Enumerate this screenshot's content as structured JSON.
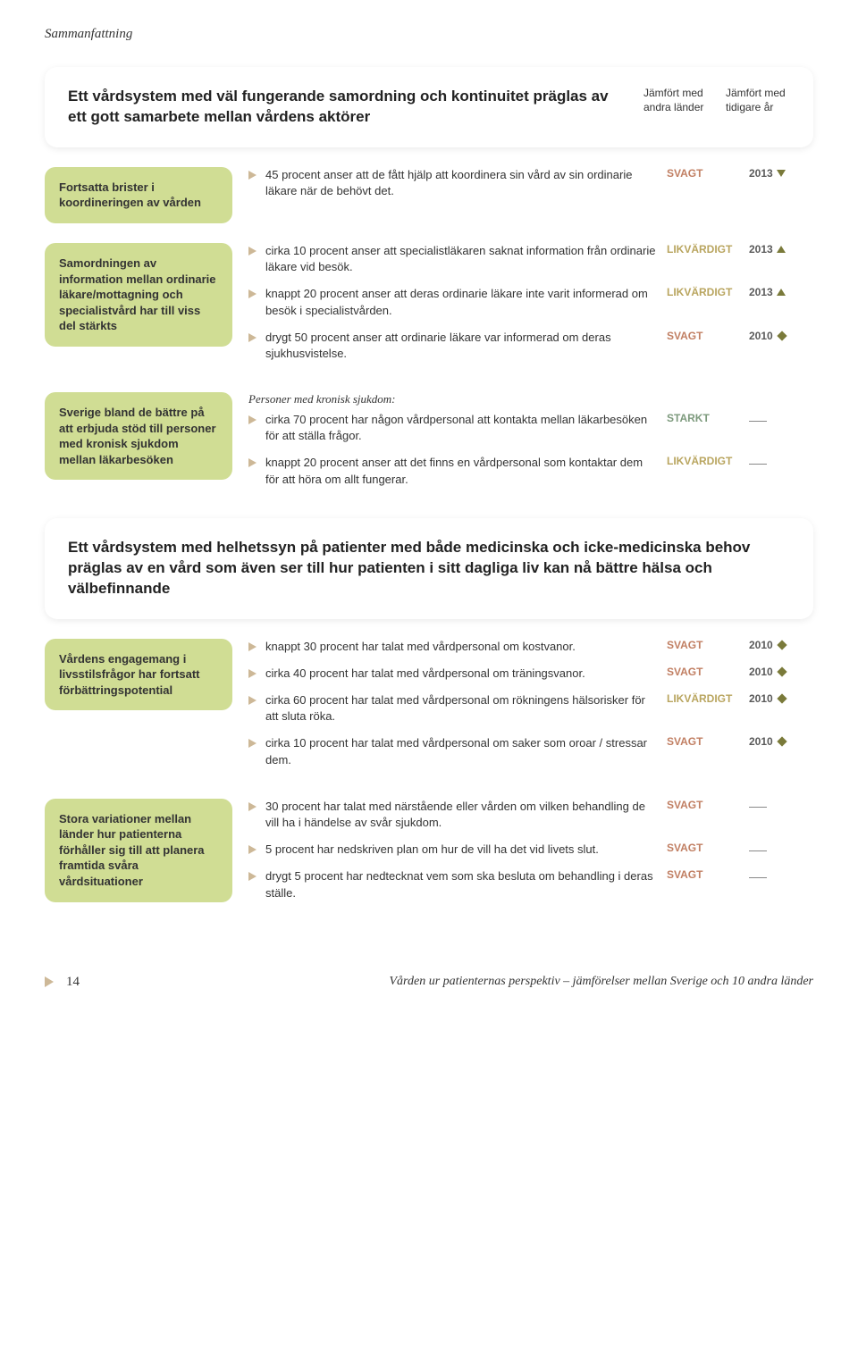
{
  "page_header": "Sammanfattning",
  "colors": {
    "pill_bg": "#d0dd94",
    "triangle": "#cdb897",
    "svagt": "#c17f63",
    "likvardigt": "#b9a55f",
    "starkt": "#7d9a7d",
    "year": "#5a5a5a"
  },
  "compare_heads": {
    "countries": "Jämfört med andra länder",
    "years": "Jämfört med tidigare år"
  },
  "section1": {
    "title": "Ett vårdsystem med väl fungerande samordning och kontinuitet präglas av ett gott samarbete mellan vårdens aktörer"
  },
  "block1": {
    "pill": "Fortsatta brister i koordineringen av vården",
    "findings": [
      {
        "text": "45 procent anser att de fått hjälp att koordinera sin vård av sin ordinarie läkare när de behövt det.",
        "rating": "SVAGT",
        "rating_color": "#c17f63",
        "year": "2013",
        "trend": "down"
      }
    ]
  },
  "block2": {
    "pill": "Samordningen av information mellan ordinarie läkare/mottagning och specialistvård har till viss del stärkts",
    "findings": [
      {
        "text": "cirka 10 procent anser att specialistläkaren saknat information från ordinarie läkare vid besök.",
        "rating": "LIKVÄRDIGT",
        "rating_color": "#b9a55f",
        "year": "2013",
        "trend": "up"
      },
      {
        "text": "knappt 20 procent anser att deras ordinarie läkare inte varit informerad om besök i specialistvården.",
        "rating": "LIKVÄRDIGT",
        "rating_color": "#b9a55f",
        "year": "2013",
        "trend": "up"
      },
      {
        "text": "drygt 50 procent anser att ordinarie läkare var informerad om deras sjukhusvistelse.",
        "rating": "SVAGT",
        "rating_color": "#c17f63",
        "year": "2010",
        "trend": "diamond"
      }
    ]
  },
  "block3": {
    "pill": "Sverige bland de bättre på att erbjuda stöd till personer med kronisk sjukdom mellan läkarbesöken",
    "subtitle": "Personer med kronisk sjukdom:",
    "findings": [
      {
        "text": "cirka 70 procent har någon vårdpersonal att kontakta mellan läkarbesöken för att ställa frågor.",
        "rating": "STARKT",
        "rating_color": "#7d9a7d",
        "year": "",
        "trend": "dash"
      },
      {
        "text": "knappt 20 procent anser att det finns en vårdpersonal som kontaktar dem för att höra om allt fungerar.",
        "rating": "LIKVÄRDIGT",
        "rating_color": "#b9a55f",
        "year": "",
        "trend": "dash"
      }
    ]
  },
  "section2": {
    "title": "Ett vårdsystem med helhetssyn på patienter med både medicinska och icke-medicinska behov präglas av en vård som även ser till hur patienten i sitt dagliga liv kan nå bättre hälsa och välbefinnande"
  },
  "block4": {
    "pill": "Vårdens engagemang i livsstilsfrågor har fortsatt förbättringspotential",
    "findings": [
      {
        "text": "knappt 30 procent har talat med vårdpersonal om kostvanor.",
        "rating": "SVAGT",
        "rating_color": "#c17f63",
        "year": "2010",
        "trend": "diamond"
      },
      {
        "text": "cirka 40 procent har talat med vårdpersonal om träningsvanor.",
        "rating": "SVAGT",
        "rating_color": "#c17f63",
        "year": "2010",
        "trend": "diamond"
      },
      {
        "text": "cirka 60 procent har talat med vårdpersonal om rökningens hälsorisker för att sluta röka.",
        "rating": "LIKVÄRDIGT",
        "rating_color": "#b9a55f",
        "year": "2010",
        "trend": "diamond"
      },
      {
        "text": "cirka 10 procent har talat med vårdpersonal om saker som oroar / stressar dem.",
        "rating": "SVAGT",
        "rating_color": "#c17f63",
        "year": "2010",
        "trend": "diamond"
      }
    ]
  },
  "block5": {
    "pill": "Stora variationer mellan länder hur patienterna förhåller sig till att planera framtida svåra vårdsituationer",
    "findings": [
      {
        "text": "30 procent har talat med närstående eller vården om vilken behandling de vill ha i händelse av svår sjukdom.",
        "rating": "SVAGT",
        "rating_color": "#c17f63",
        "year": "",
        "trend": "dash"
      },
      {
        "text": "5 procent har nedskriven plan om hur de vill ha det vid livets slut.",
        "rating": "SVAGT",
        "rating_color": "#c17f63",
        "year": "",
        "trend": "dash"
      },
      {
        "text": "drygt 5 procent har nedtecknat vem som ska besluta om behandling i deras ställe.",
        "rating": "SVAGT",
        "rating_color": "#c17f63",
        "year": "",
        "trend": "dash"
      }
    ]
  },
  "footer": {
    "page": "14",
    "title": "Vården ur patienternas perspektiv – jämförelser mellan Sverige och 10 andra länder"
  }
}
